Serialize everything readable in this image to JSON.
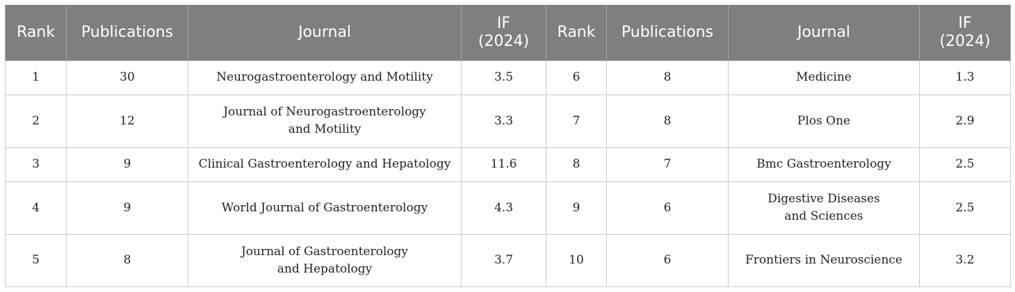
{
  "table": {
    "headers": [
      "Rank",
      "Publications",
      "Journal",
      "IF\n(2024)",
      "Rank",
      "Publications",
      "Journal",
      "IF\n(2024)"
    ],
    "rows": [
      {
        "rank_a": "1",
        "pubs_a": "30",
        "journal_a": "Neurogastroenterology and Motility",
        "if_a": "3.5",
        "rank_b": "6",
        "pubs_b": "8",
        "journal_b": "Medicine",
        "if_b": "1.3"
      },
      {
        "rank_a": "2",
        "pubs_a": "12",
        "journal_a": "Journal of Neurogastroenterology\nand Motility",
        "if_a": "3.3",
        "rank_b": "7",
        "pubs_b": "8",
        "journal_b": "Plos One",
        "if_b": "2.9"
      },
      {
        "rank_a": "3",
        "pubs_a": "9",
        "journal_a": "Clinical Gastroenterology and Hepatology",
        "if_a": "11.6",
        "rank_b": "8",
        "pubs_b": "7",
        "journal_b": "Bmc Gastroenterology",
        "if_b": "2.5"
      },
      {
        "rank_a": "4",
        "pubs_a": "9",
        "journal_a": "World Journal of Gastroenterology",
        "if_a": "4.3",
        "rank_b": "9",
        "pubs_b": "6",
        "journal_b": "Digestive Diseases\nand Sciences",
        "if_b": "2.5"
      },
      {
        "rank_a": "5",
        "pubs_a": "8",
        "journal_a": "Journal of Gastroenterology\nand Hepatology",
        "if_a": "3.7",
        "rank_b": "10",
        "pubs_b": "6",
        "journal_b": "Frontiers in Neuroscience",
        "if_b": "3.2"
      }
    ]
  },
  "colors": {
    "header_bg": "#7f7f7f",
    "header_text": "#ffffff",
    "grid_line": "#c8c8c8"
  }
}
